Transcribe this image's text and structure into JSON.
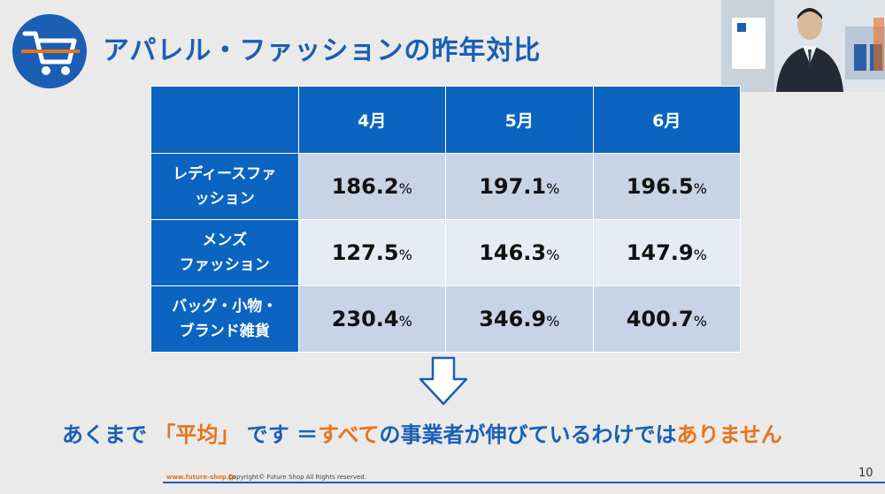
{
  "header": {
    "title": "アパレル・ファッションの昨年対比",
    "icon": "shopping-cart-icon",
    "accent_color": "#1a5fb4"
  },
  "table": {
    "columns": [
      "",
      "4月",
      "5月",
      "6月"
    ],
    "rows": [
      {
        "label_line1": "レディースファ",
        "label_line2": "ッション",
        "values": [
          "186.2",
          "197.1",
          "196.5"
        ]
      },
      {
        "label_line1": "メンズ",
        "label_line2": "ファッション",
        "values": [
          "127.5",
          "146.3",
          "147.9"
        ]
      },
      {
        "label_line1": "バッグ・小物・",
        "label_line2": "ブランド雑貨",
        "values": [
          "230.4",
          "346.9",
          "400.7"
        ]
      }
    ],
    "unit": "%"
  },
  "arrow_icon": "down-arrow-icon",
  "conclusion": {
    "part1": "あくまで",
    "part2": "「平均」",
    "part3": "です ＝",
    "part4": "すべて",
    "part5": "の事業者が伸びているわけでは",
    "part6": "ありません"
  },
  "footer": {
    "url": "www.future-shop.jp",
    "copyright": "Copyright© Future Shop All Rights reserved.",
    "page_number": "10"
  },
  "colors": {
    "blue": "#1a5fb4",
    "orange": "#e8731a",
    "table_header": "#0b64c0"
  }
}
